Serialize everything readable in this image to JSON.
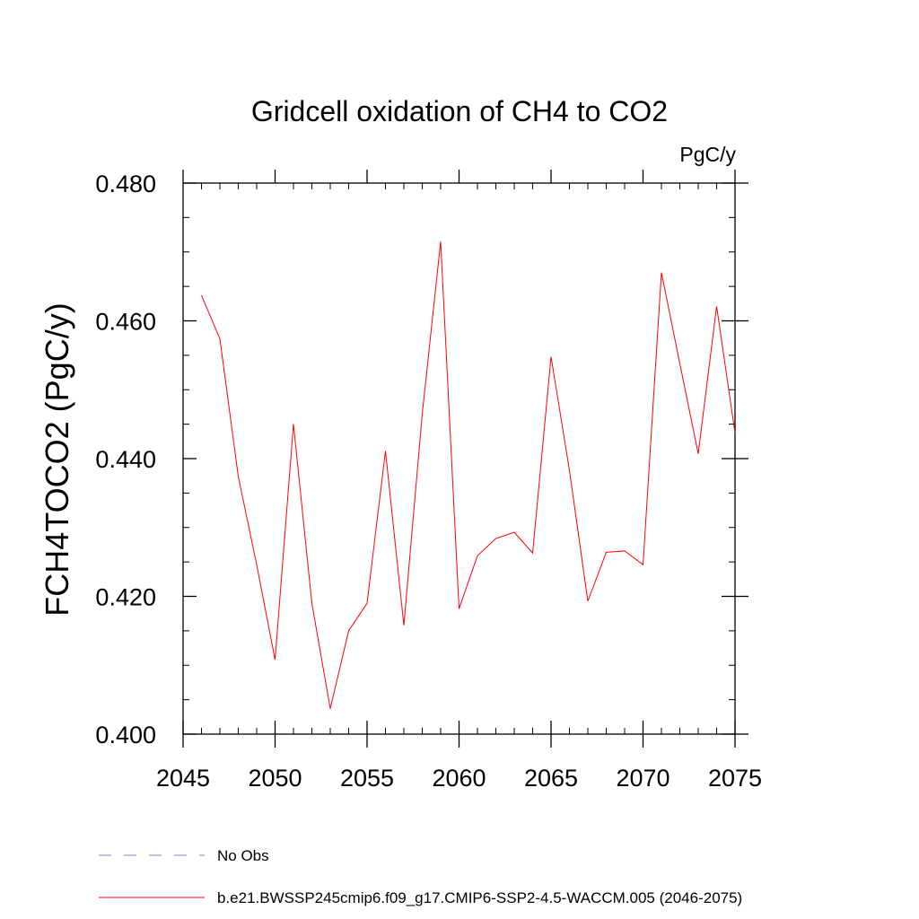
{
  "chart_data": {
    "type": "line",
    "title": "Gridcell oxidation of CH4 to CO2",
    "units": "PgC/y",
    "ylabel": "FCH4TOCO2  (PgC/y)",
    "xlabel": "",
    "xlim": [
      2045,
      2075
    ],
    "ylim": [
      0.4,
      0.48
    ],
    "x_ticks": [
      2045,
      2050,
      2055,
      2060,
      2065,
      2070,
      2075
    ],
    "y_ticks": [
      0.4,
      0.42,
      0.44,
      0.46,
      0.48
    ],
    "x_tick_labels": [
      "2045",
      "2050",
      "2055",
      "2060",
      "2065",
      "2070",
      "2075"
    ],
    "y_tick_labels": [
      "0.400",
      "0.420",
      "0.440",
      "0.460",
      "0.480"
    ],
    "series": [
      {
        "name": "b.e21.BWSSP245cmip6.f09_g17.CMIP6-SSP2-4.5-WACCM.005 (2046-2075)",
        "color": "#ff0000",
        "x": [
          2046,
          2047,
          2048,
          2049,
          2050,
          2051,
          2052,
          2053,
          2054,
          2055,
          2056,
          2057,
          2058,
          2059,
          2060,
          2061,
          2062,
          2063,
          2064,
          2065,
          2066,
          2067,
          2068,
          2069,
          2070,
          2071,
          2072,
          2073,
          2074,
          2075
        ],
        "values": [
          0.4637,
          0.4574,
          0.4374,
          0.4246,
          0.4108,
          0.445,
          0.419,
          0.4037,
          0.415,
          0.419,
          0.4411,
          0.4158,
          0.4465,
          0.4715,
          0.4182,
          0.4259,
          0.4284,
          0.4293,
          0.4263,
          0.4548,
          0.4383,
          0.4193,
          0.4264,
          0.4266,
          0.4246,
          0.467,
          0.4538,
          0.4407,
          0.4621,
          0.4437
        ]
      }
    ],
    "legend": [
      {
        "label": "No Obs",
        "style": "dashed",
        "color": "#8080c8"
      },
      {
        "label": "b.e21.BWSSP245cmip6.f09_g17.CMIP6-SSP2-4.5-WACCM.005 (2046-2075)",
        "style": "solid",
        "color": "#ff0000"
      }
    ]
  }
}
